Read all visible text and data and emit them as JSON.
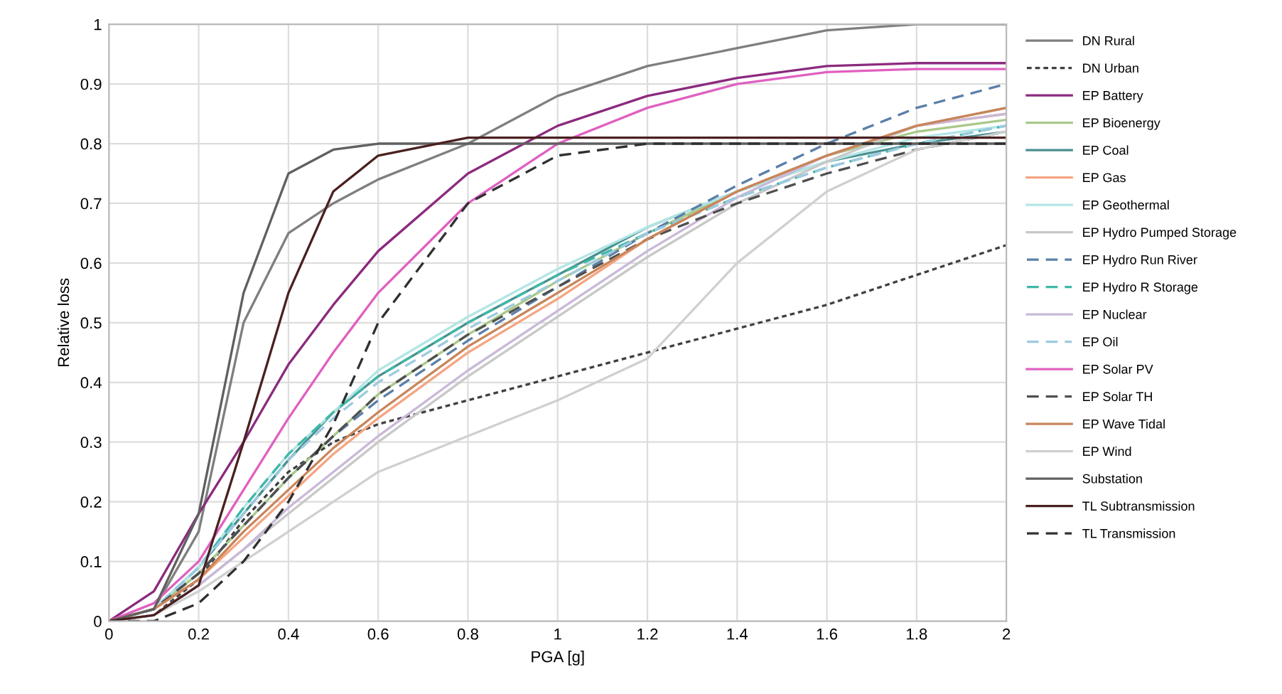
{
  "chart_data": {
    "type": "line",
    "xlabel": "PGA [g]",
    "ylabel": "Relative loss",
    "x": [
      0,
      0.1,
      0.2,
      0.3,
      0.4,
      0.5,
      0.6,
      0.8,
      1.0,
      1.2,
      1.4,
      1.6,
      1.8,
      2.0
    ],
    "xlim": [
      0,
      2
    ],
    "xticks": [
      0,
      0.2,
      0.4,
      0.6,
      0.8,
      1,
      1.2,
      1.4,
      1.6,
      1.8,
      2
    ],
    "ylim": [
      0,
      1
    ],
    "yticks": [
      0,
      0.1,
      0.2,
      0.3,
      0.4,
      0.5,
      0.6,
      0.7,
      0.8,
      0.9,
      1
    ],
    "grid": true,
    "legend": "right",
    "marker": "none",
    "series": [
      {
        "name": "DN Rural",
        "color": "#7f7f7f",
        "line_style": "solid",
        "values": [
          0,
          0.02,
          0.15,
          0.5,
          0.65,
          0.7,
          0.74,
          0.8,
          0.88,
          0.93,
          0.96,
          0.99,
          1.0,
          1.0
        ]
      },
      {
        "name": "DN Urban",
        "color": "#404040",
        "line_style": "dotted",
        "values": [
          0,
          0.01,
          0.07,
          0.17,
          0.25,
          0.3,
          0.33,
          0.37,
          0.41,
          0.45,
          0.49,
          0.53,
          0.58,
          0.63
        ]
      },
      {
        "name": "EP Battery",
        "color": "#8b2a7e",
        "line_style": "solid",
        "values": [
          0,
          0.05,
          0.18,
          0.3,
          0.43,
          0.53,
          0.62,
          0.75,
          0.83,
          0.88,
          0.91,
          0.93,
          0.935,
          0.935
        ]
      },
      {
        "name": "EP Bioenergy",
        "color": "#a9c98a",
        "line_style": "solid",
        "values": [
          0,
          0.02,
          0.08,
          0.16,
          0.24,
          0.31,
          0.38,
          0.48,
          0.57,
          0.65,
          0.72,
          0.78,
          0.82,
          0.84
        ]
      },
      {
        "name": "EP Coal",
        "color": "#4a8f8f",
        "line_style": "solid",
        "values": [
          0,
          0.02,
          0.09,
          0.18,
          0.27,
          0.35,
          0.41,
          0.5,
          0.58,
          0.66,
          0.72,
          0.77,
          0.8,
          0.82
        ]
      },
      {
        "name": "EP Gas",
        "color": "#f4a582",
        "line_style": "solid",
        "values": [
          0,
          0.02,
          0.07,
          0.14,
          0.21,
          0.28,
          0.34,
          0.45,
          0.54,
          0.64,
          0.72,
          0.78,
          0.83,
          0.85
        ]
      },
      {
        "name": "EP Geothermal",
        "color": "#b3e5e5",
        "line_style": "solid",
        "values": [
          0,
          0.02,
          0.09,
          0.19,
          0.28,
          0.35,
          0.42,
          0.51,
          0.59,
          0.66,
          0.72,
          0.77,
          0.81,
          0.83
        ]
      },
      {
        "name": "EP Hydro Pumped Storage",
        "color": "#c8c8c8",
        "line_style": "solid",
        "values": [
          0,
          0.01,
          0.06,
          0.12,
          0.18,
          0.24,
          0.3,
          0.41,
          0.51,
          0.61,
          0.7,
          0.77,
          0.83,
          0.86
        ]
      },
      {
        "name": "EP Hydro Run River",
        "color": "#5b7fa8",
        "line_style": "dashed",
        "values": [
          0,
          0.02,
          0.08,
          0.16,
          0.24,
          0.31,
          0.37,
          0.47,
          0.56,
          0.65,
          0.73,
          0.8,
          0.86,
          0.9
        ]
      },
      {
        "name": "EP Hydro R Storage",
        "color": "#3fb8a8",
        "line_style": "dashed",
        "values": [
          0,
          0.02,
          0.09,
          0.19,
          0.28,
          0.35,
          0.41,
          0.5,
          0.58,
          0.65,
          0.71,
          0.76,
          0.8,
          0.83
        ]
      },
      {
        "name": "EP Nuclear",
        "color": "#c9b8d8",
        "line_style": "solid",
        "values": [
          0,
          0.01,
          0.06,
          0.12,
          0.19,
          0.25,
          0.31,
          0.42,
          0.52,
          0.62,
          0.71,
          0.78,
          0.83,
          0.85
        ]
      },
      {
        "name": "EP Oil",
        "color": "#9ecae1",
        "line_style": "dashed",
        "values": [
          0,
          0.02,
          0.09,
          0.18,
          0.27,
          0.34,
          0.4,
          0.49,
          0.57,
          0.65,
          0.71,
          0.76,
          0.8,
          0.83
        ]
      },
      {
        "name": "EP Solar PV",
        "color": "#e060c0",
        "line_style": "solid",
        "values": [
          0,
          0.03,
          0.1,
          0.22,
          0.34,
          0.45,
          0.55,
          0.7,
          0.8,
          0.86,
          0.9,
          0.92,
          0.925,
          0.925
        ]
      },
      {
        "name": "EP Solar TH",
        "color": "#505050",
        "line_style": "dashed",
        "values": [
          0,
          0.02,
          0.08,
          0.16,
          0.24,
          0.31,
          0.38,
          0.48,
          0.56,
          0.64,
          0.7,
          0.75,
          0.79,
          0.82
        ]
      },
      {
        "name": "EP Wave Tidal",
        "color": "#c8855a",
        "line_style": "solid",
        "values": [
          0,
          0.02,
          0.07,
          0.15,
          0.22,
          0.29,
          0.35,
          0.46,
          0.55,
          0.64,
          0.72,
          0.78,
          0.83,
          0.86
        ]
      },
      {
        "name": "EP Wind",
        "color": "#d0d0d0",
        "line_style": "solid",
        "values": [
          0,
          0.01,
          0.05,
          0.1,
          0.15,
          0.2,
          0.25,
          0.31,
          0.37,
          0.44,
          0.6,
          0.72,
          0.79,
          0.82
        ]
      },
      {
        "name": "Substation",
        "color": "#606060",
        "line_style": "solid",
        "values": [
          0,
          0.02,
          0.18,
          0.55,
          0.75,
          0.79,
          0.8,
          0.8,
          0.8,
          0.8,
          0.8,
          0.8,
          0.8,
          0.8
        ]
      },
      {
        "name": "TL Subtransmission",
        "color": "#4a2020",
        "line_style": "solid",
        "values": [
          0,
          0.01,
          0.06,
          0.3,
          0.55,
          0.72,
          0.78,
          0.81,
          0.81,
          0.81,
          0.81,
          0.81,
          0.81,
          0.81
        ]
      },
      {
        "name": "TL Transmission",
        "color": "#303030",
        "line_style": "dashed",
        "values": [
          0,
          0.0,
          0.03,
          0.1,
          0.2,
          0.33,
          0.5,
          0.7,
          0.78,
          0.8,
          0.8,
          0.8,
          0.8,
          0.8
        ]
      }
    ]
  }
}
